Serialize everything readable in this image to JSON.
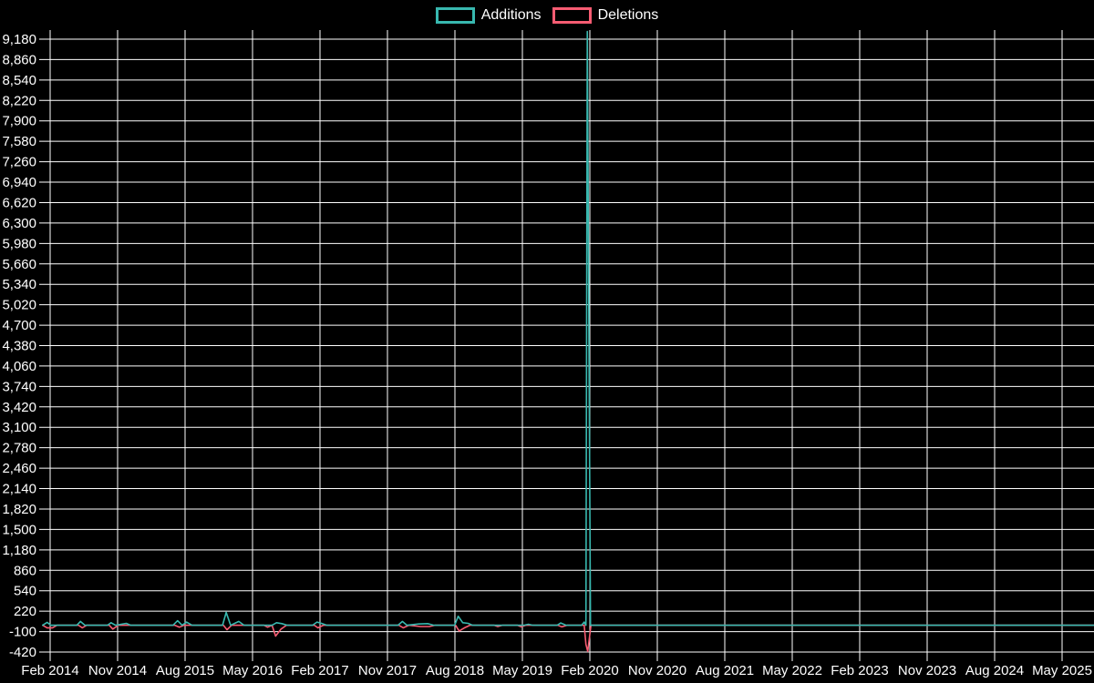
{
  "legend": {
    "items": [
      {
        "label": "Additions",
        "color": "#38b8af"
      },
      {
        "label": "Deletions",
        "color": "#f75c72"
      }
    ]
  },
  "chart_data": {
    "type": "line",
    "title": "",
    "xlabel": "",
    "ylabel": "",
    "background_color": "#000000",
    "grid": true,
    "grid_color": "#ffffff",
    "legend_position": "top-center",
    "x_tick_labels": [
      "Feb 2014",
      "Nov 2014",
      "Aug 2015",
      "May 2016",
      "Feb 2017",
      "Nov 2017",
      "Aug 2018",
      "May 2019",
      "Feb 2020",
      "Nov 2020",
      "Aug 2021",
      "May 2022",
      "Feb 2023",
      "Nov 2023",
      "Aug 2024",
      "May 2025"
    ],
    "x_tick_values": [
      2014.0833,
      2014.8333,
      2015.5833,
      2016.3333,
      2017.0833,
      2017.8333,
      2018.5833,
      2019.3333,
      2020.0833,
      2020.8333,
      2021.5833,
      2022.3333,
      2023.0833,
      2023.8333,
      2024.5833,
      2025.3333
    ],
    "x_domain": [
      2014.0,
      2025.69
    ],
    "y_tick_labels": [
      "9,180",
      "8,860",
      "8,540",
      "8,220",
      "7,900",
      "7,580",
      "7,260",
      "6,940",
      "6,620",
      "6,300",
      "5,980",
      "5,660",
      "5,340",
      "5,020",
      "4,700",
      "4,380",
      "4,060",
      "3,740",
      "3,420",
      "3,100",
      "2,780",
      "2,460",
      "2,140",
      "1,820",
      "1,500",
      "1,180",
      "860",
      "540",
      "220",
      "-100",
      "-420"
    ],
    "y_tick_values": [
      9180,
      8860,
      8540,
      8220,
      7900,
      7580,
      7260,
      6940,
      6620,
      6300,
      5980,
      5660,
      5340,
      5020,
      4700,
      4380,
      4060,
      3740,
      3420,
      3100,
      2780,
      2460,
      2140,
      1820,
      1500,
      1180,
      860,
      540,
      220,
      -100,
      -420
    ],
    "ylim": [
      -420,
      9320
    ],
    "series": [
      {
        "name": "Deletions",
        "color": "#f75c72",
        "points": [
          [
            2014.0,
            0
          ],
          [
            2014.05,
            -40
          ],
          [
            2014.11,
            -40
          ],
          [
            2014.16,
            0
          ],
          [
            2014.4,
            0
          ],
          [
            2014.44,
            -40
          ],
          [
            2014.49,
            0
          ],
          [
            2014.74,
            0
          ],
          [
            2014.78,
            -60
          ],
          [
            2014.84,
            0
          ],
          [
            2015.47,
            0
          ],
          [
            2015.52,
            -30
          ],
          [
            2015.57,
            0
          ],
          [
            2016.01,
            0
          ],
          [
            2016.05,
            -70
          ],
          [
            2016.1,
            0
          ],
          [
            2016.46,
            0
          ],
          [
            2016.5,
            -30
          ],
          [
            2016.55,
            0
          ],
          [
            2016.59,
            -170
          ],
          [
            2016.65,
            -60
          ],
          [
            2016.71,
            0
          ],
          [
            2017.02,
            0
          ],
          [
            2017.06,
            -40
          ],
          [
            2017.12,
            0
          ],
          [
            2017.96,
            0
          ],
          [
            2018.01,
            -40
          ],
          [
            2018.07,
            0
          ],
          [
            2018.2,
            -20
          ],
          [
            2018.3,
            -20
          ],
          [
            2018.36,
            0
          ],
          [
            2018.59,
            0
          ],
          [
            2018.63,
            -90
          ],
          [
            2018.69,
            -40
          ],
          [
            2018.75,
            0
          ],
          [
            2019.02,
            0
          ],
          [
            2019.06,
            -20
          ],
          [
            2019.11,
            0
          ],
          [
            2019.28,
            0
          ],
          [
            2019.32,
            -25
          ],
          [
            2019.37,
            0
          ],
          [
            2019.73,
            0
          ],
          [
            2019.77,
            -25
          ],
          [
            2019.83,
            0
          ],
          [
            2020.02,
            0
          ],
          [
            2020.04,
            -300
          ],
          [
            2020.06,
            -410
          ],
          [
            2020.095,
            0
          ],
          [
            2025.69,
            0
          ]
        ]
      },
      {
        "name": "Additions",
        "color": "#38b8af",
        "points": [
          [
            2014.0,
            0
          ],
          [
            2014.05,
            45
          ],
          [
            2014.09,
            0
          ],
          [
            2014.38,
            0
          ],
          [
            2014.42,
            60
          ],
          [
            2014.47,
            0
          ],
          [
            2014.72,
            0
          ],
          [
            2014.76,
            40
          ],
          [
            2014.81,
            0
          ],
          [
            2014.93,
            30
          ],
          [
            2014.98,
            0
          ],
          [
            2015.45,
            0
          ],
          [
            2015.5,
            70
          ],
          [
            2015.55,
            0
          ],
          [
            2015.6,
            50
          ],
          [
            2015.66,
            0
          ],
          [
            2016.0,
            0
          ],
          [
            2016.04,
            200
          ],
          [
            2016.09,
            0
          ],
          [
            2016.18,
            60
          ],
          [
            2016.24,
            0
          ],
          [
            2016.55,
            0
          ],
          [
            2016.6,
            40
          ],
          [
            2016.66,
            25
          ],
          [
            2016.72,
            0
          ],
          [
            2017.0,
            0
          ],
          [
            2017.05,
            50
          ],
          [
            2017.1,
            30
          ],
          [
            2017.16,
            0
          ],
          [
            2017.95,
            0
          ],
          [
            2018.0,
            60
          ],
          [
            2018.05,
            0
          ],
          [
            2018.18,
            20
          ],
          [
            2018.28,
            25
          ],
          [
            2018.35,
            0
          ],
          [
            2018.58,
            0
          ],
          [
            2018.62,
            140
          ],
          [
            2018.67,
            40
          ],
          [
            2018.73,
            30
          ],
          [
            2018.78,
            0
          ],
          [
            2019.35,
            0
          ],
          [
            2019.4,
            15
          ],
          [
            2019.45,
            0
          ],
          [
            2019.72,
            0
          ],
          [
            2019.76,
            35
          ],
          [
            2019.82,
            0
          ],
          [
            2019.99,
            0
          ],
          [
            2020.02,
            50
          ],
          [
            2020.04,
            0
          ],
          [
            2020.055,
            9300
          ],
          [
            2020.09,
            0
          ],
          [
            2025.69,
            0
          ]
        ]
      }
    ]
  }
}
